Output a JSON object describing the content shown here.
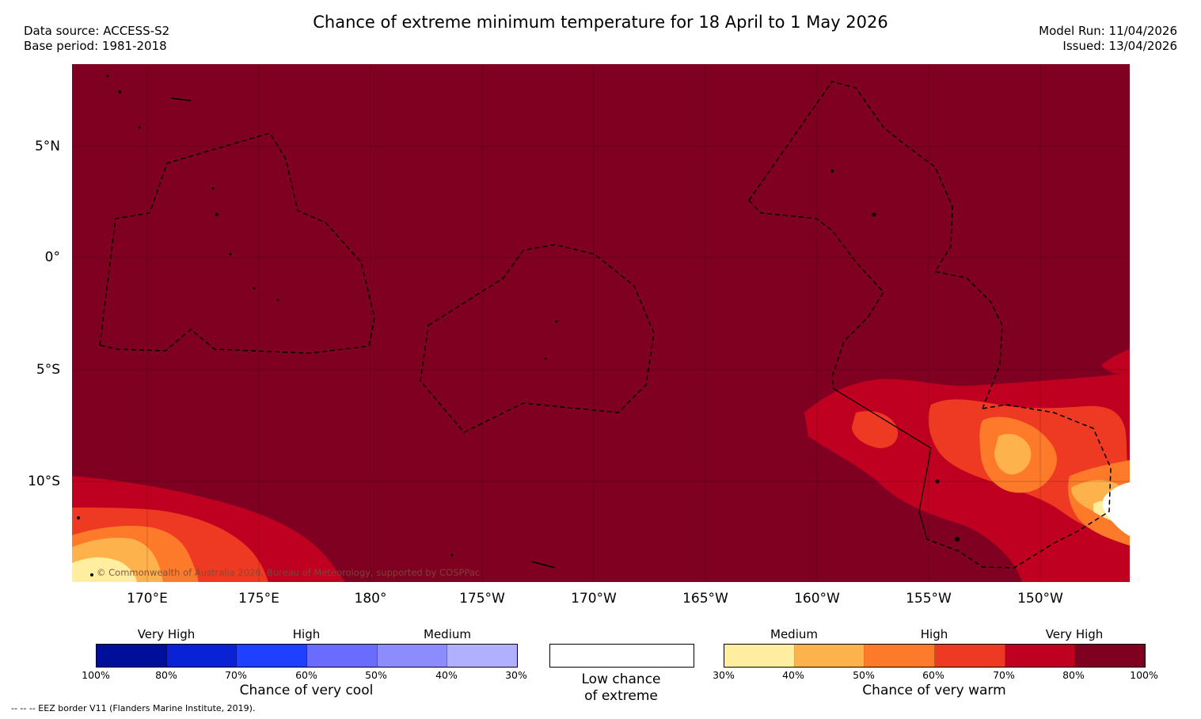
{
  "header": {
    "title": "Chance of extreme minimum temperature for 18 April to 1 May 2026",
    "data_source": "Data source: ACCESS-S2",
    "base_period": "Base period: 1981-2018",
    "model_run": "Model Run: 11/04/2026",
    "issued": "Issued: 13/04/2026"
  },
  "map": {
    "lat_labels": [
      "5°N",
      "0°",
      "5°S",
      "10°S"
    ],
    "lon_labels": [
      "170°E",
      "175°E",
      "180°",
      "175°W",
      "170°W",
      "165°W",
      "160°W",
      "155°W",
      "150°W"
    ],
    "copyright": "© Commonwealth of Australia 2026, Bureau of Meteorology, supported by COSPPac",
    "background_color": "#7f0020"
  },
  "legend": {
    "cool": {
      "levels": [
        "Very High",
        "High",
        "Medium"
      ],
      "ticks": [
        "100%",
        "80%",
        "70%",
        "60%",
        "50%",
        "40%",
        "30%"
      ],
      "colors": [
        "#000f99",
        "#0a22d6",
        "#2040ff",
        "#6a6cff",
        "#8c8cff",
        "#b0b0ff"
      ],
      "caption": "Chance of very cool"
    },
    "low": {
      "caption_line1": "Low chance",
      "caption_line2": "of extreme",
      "color": "#ffffff"
    },
    "warm": {
      "levels": [
        "Medium",
        "High",
        "Very High"
      ],
      "ticks": [
        "30%",
        "40%",
        "50%",
        "60%",
        "70%",
        "80%",
        "100%"
      ],
      "colors": [
        "#ffeda0",
        "#feb24c",
        "#fd7a2a",
        "#ee3a22",
        "#c00020",
        "#7f0020"
      ],
      "caption": "Chance of very warm"
    }
  },
  "footnote": "--  --  -- EEZ border V11 (Flanders Marine Institute, 2019)."
}
